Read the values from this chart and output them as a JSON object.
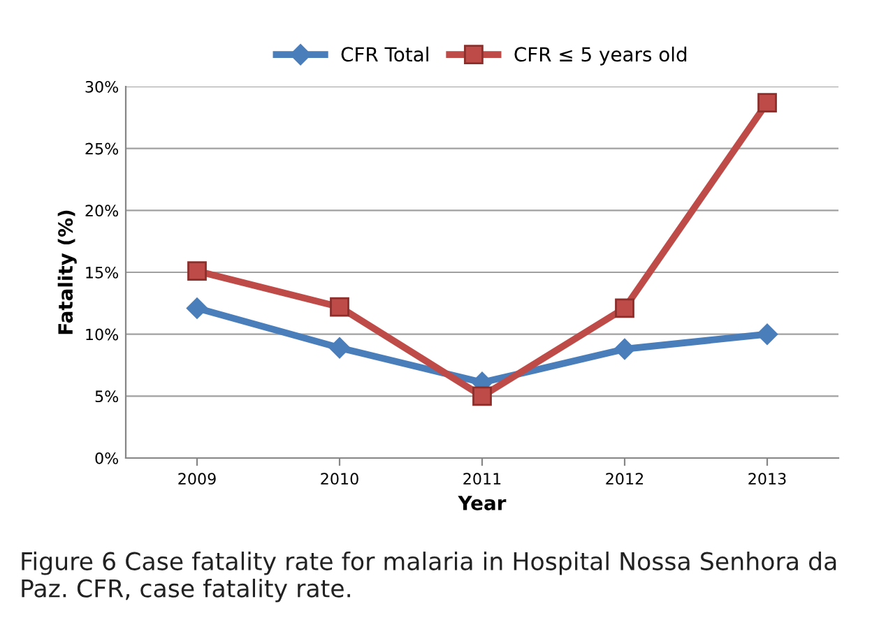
{
  "chart_data": {
    "type": "line",
    "xlabel": "Year",
    "ylabel": "Fatality (%)",
    "categories": [
      "2009",
      "2010",
      "2011",
      "2012",
      "2013"
    ],
    "series": [
      {
        "name": "CFR Total",
        "color": "#4a7ebb",
        "marker": "diamond",
        "values": [
          12.1,
          8.9,
          6.1,
          8.8,
          10.0
        ]
      },
      {
        "name": "CFR ≤ 5 years old",
        "color": "#be4b48",
        "marker": "square",
        "values": [
          15.1,
          12.2,
          5.0,
          12.1,
          28.7
        ]
      }
    ],
    "ylim": [
      0,
      30
    ],
    "yticks": [
      {
        "value": 0,
        "label": "0%"
      },
      {
        "value": 5,
        "label": "5%"
      },
      {
        "value": 10,
        "label": "10%"
      },
      {
        "value": 15,
        "label": "15%"
      },
      {
        "value": 20,
        "label": "20%"
      },
      {
        "value": 25,
        "label": "25%"
      },
      {
        "value": 30,
        "label": "30%"
      }
    ],
    "grid": "y",
    "legend": "top",
    "line_style": "solid",
    "annotations": [
      "Figure 6 Case fatality rate for malaria in Hospital Nossa Senhora da Paz. CFR, case fatality rate."
    ]
  }
}
